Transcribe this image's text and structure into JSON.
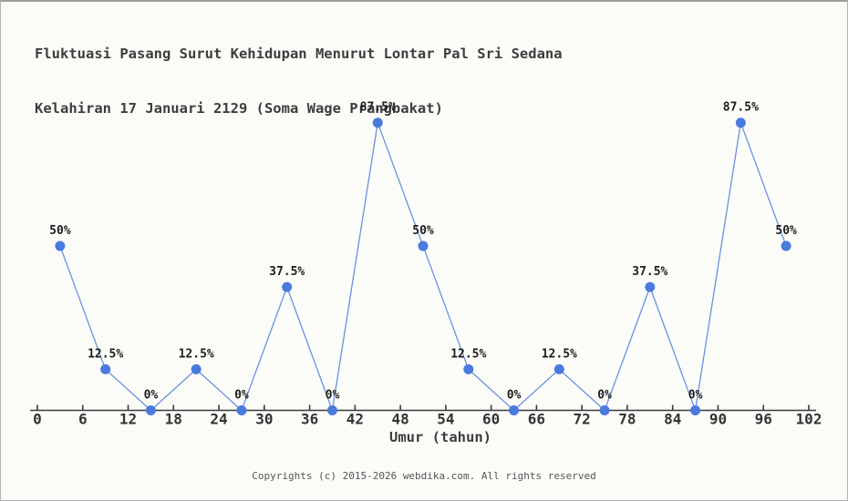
{
  "title": {
    "line1": "Fluktuasi Pasang Surut Kehidupan Menurut Lontar Pal Sri Sedana",
    "line2": "Kelahiran 17 Januari 2129 (Soma Wage Prangbakat)"
  },
  "chart_data": {
    "type": "line",
    "x": [
      3,
      9,
      15,
      21,
      27,
      33,
      39,
      45,
      51,
      57,
      63,
      69,
      75,
      81,
      87,
      93,
      99
    ],
    "values": [
      50,
      12.5,
      0,
      12.5,
      0,
      37.5,
      0,
      87.5,
      50,
      12.5,
      0,
      12.5,
      0,
      37.5,
      0,
      87.5,
      50
    ],
    "point_labels": [
      "50%",
      "12.5%",
      "0%",
      "12.5%",
      "0%",
      "37.5%",
      "0%",
      "87.5%",
      "50%",
      "12.5%",
      "0%",
      "12.5%",
      "0%",
      "37.5%",
      "0%",
      "87.5%",
      "50%"
    ],
    "x_ticks": [
      0,
      6,
      12,
      18,
      24,
      30,
      36,
      42,
      48,
      54,
      60,
      66,
      72,
      78,
      84,
      90,
      96,
      102
    ],
    "xlabel": "Umur (tahun)",
    "xlim": [
      0,
      102
    ],
    "ylim": [
      0,
      100
    ],
    "grid": false,
    "legend": "none",
    "line_color": "#6a92de",
    "marker_color": "#4a7ade",
    "axis_color": "#3a3a3a"
  },
  "footer": {
    "copyright": "Copyrights (c) 2015-2026 webdika.com. All rights reserved"
  }
}
